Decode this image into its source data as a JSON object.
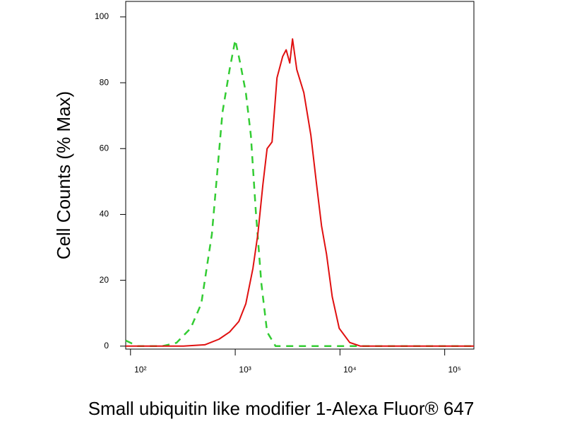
{
  "chart_data": {
    "type": "line",
    "x_label": "Small ubiquitin like modifier 1-Alexa Fluor® 647",
    "y_label": "Cell Counts (% Max)",
    "xscale": "log",
    "xlim": [
      90,
      190000
    ],
    "xticks": [
      {
        "value": 100,
        "label": "10²"
      },
      {
        "value": 1000,
        "label": "10³"
      },
      {
        "value": 10000,
        "label": "10⁴"
      },
      {
        "value": 100000,
        "label": "10⁵"
      }
    ],
    "ylim": [
      -0.9,
      104.7
    ],
    "yticks": [
      0,
      20,
      40,
      60,
      80,
      100
    ],
    "series": [
      {
        "color": "#33cc33",
        "dashed": true,
        "x": [
          90,
          117,
          201,
          275,
          375,
          474,
          598,
          755,
          883,
          1000,
          1115,
          1262,
          1409,
          1571,
          1778,
          2014,
          2427,
          3870,
          190000
        ],
        "values": [
          1.7,
          0,
          0,
          1,
          5.4,
          12.9,
          34,
          71,
          84,
          93,
          86,
          77,
          64,
          41,
          19,
          4.3,
          0,
          0,
          0
        ]
      },
      {
        "color": "#e01010",
        "dashed": false,
        "x": [
          90,
          321,
          512,
          700,
          883,
          1082,
          1262,
          1475,
          1645,
          1835,
          2014,
          2245,
          2505,
          2838,
          3065,
          3315,
          3525,
          3870,
          4520,
          5280,
          5980,
          6670,
          7440,
          8430,
          9840,
          12400,
          15700,
          190000
        ],
        "values": [
          0,
          0,
          0.4,
          2.1,
          4.3,
          7.5,
          12.9,
          23.6,
          34,
          49,
          60,
          62,
          81.5,
          88,
          90,
          86,
          93.3,
          84,
          77,
          64,
          49,
          36.5,
          28,
          15,
          5.4,
          1.1,
          0,
          0
        ]
      }
    ]
  }
}
